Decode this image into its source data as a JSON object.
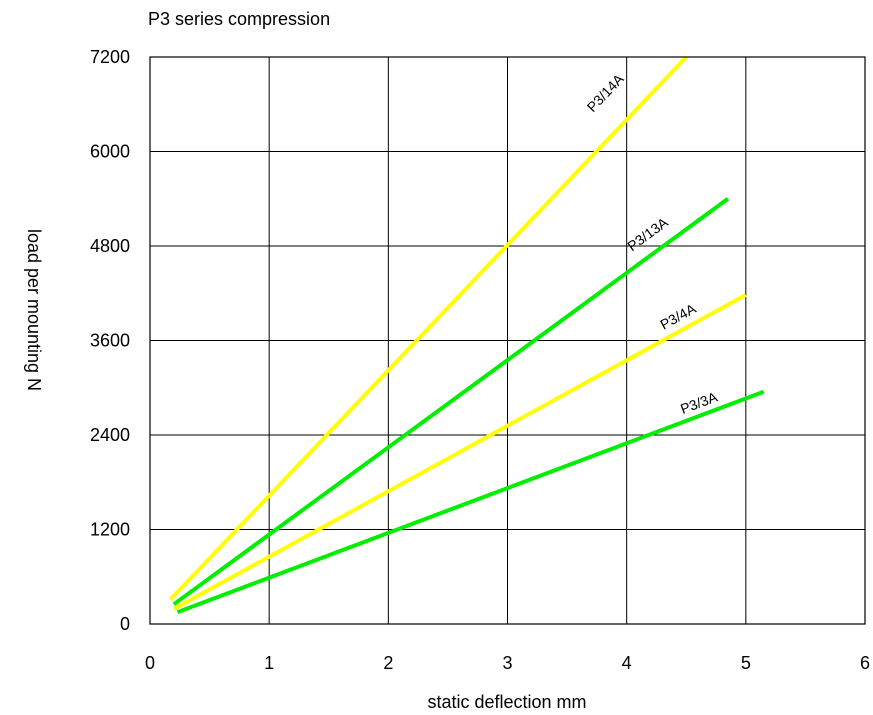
{
  "chart_data": {
    "type": "line",
    "title": "P3 series compression",
    "xlabel": "static deflection mm",
    "ylabel": "load per mounting N",
    "xlim": [
      0,
      6
    ],
    "ylim": [
      0,
      7200
    ],
    "xticks": [
      0,
      1,
      2,
      3,
      4,
      5,
      6
    ],
    "yticks": [
      0,
      1200,
      2400,
      3600,
      4800,
      6000,
      7200
    ],
    "grid": true,
    "legend": "none",
    "series": [
      {
        "name": "P3/14A",
        "color": "#ffff00",
        "points": [
          [
            0.17,
            310
          ],
          [
            4.5,
            7200
          ]
        ],
        "label_at": [
          3.85,
          6700
        ]
      },
      {
        "name": "P3/13A",
        "color": "#00ee00",
        "points": [
          [
            0.2,
            250
          ],
          [
            4.85,
            5400
          ]
        ],
        "label_at": [
          4.2,
          4900
        ]
      },
      {
        "name": "P3/4A",
        "color": "#ffff00",
        "points": [
          [
            0.2,
            190
          ],
          [
            5.0,
            4180
          ]
        ],
        "label_at": [
          4.45,
          3850
        ]
      },
      {
        "name": "P3/3A",
        "color": "#00ee00",
        "points": [
          [
            0.23,
            150
          ],
          [
            5.15,
            2950
          ]
        ],
        "label_at": [
          4.62,
          2750
        ]
      }
    ]
  }
}
